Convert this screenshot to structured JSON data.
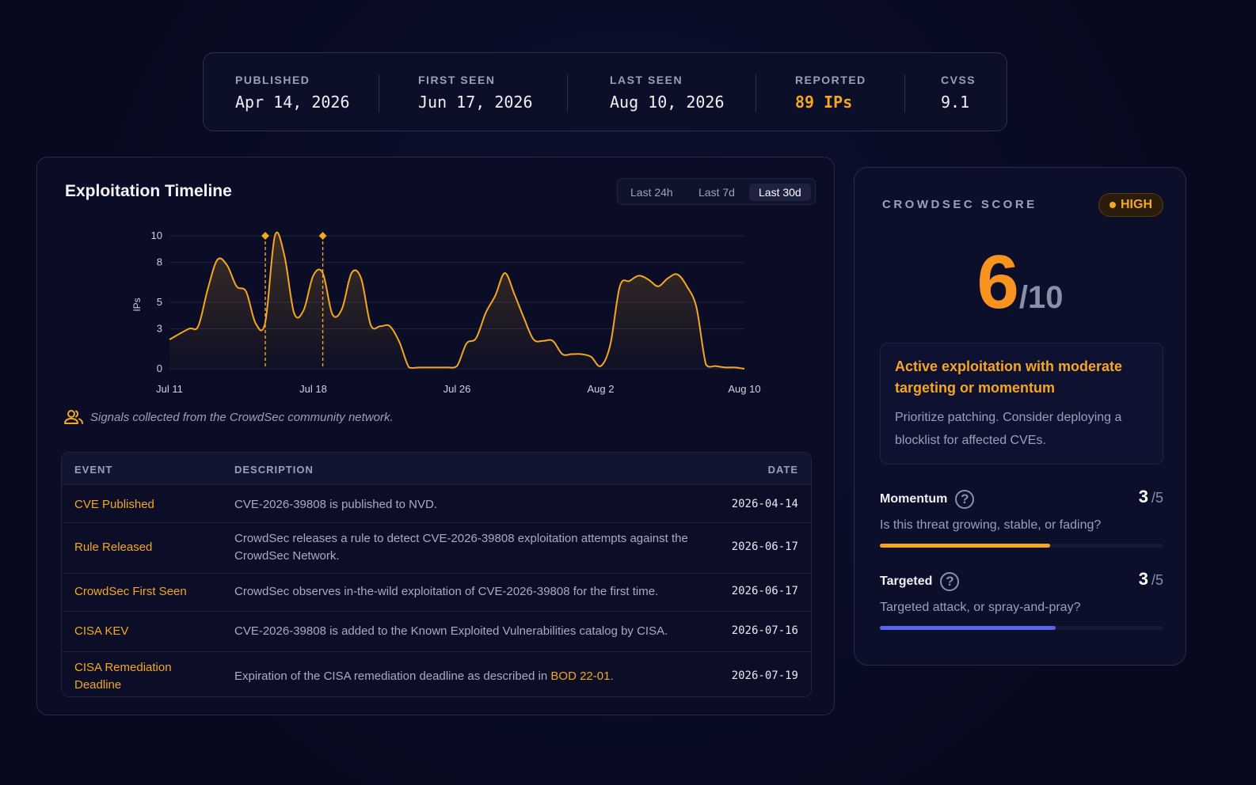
{
  "stats": {
    "published": {
      "label": "PUBLISHED",
      "value": "Apr 14, 2026"
    },
    "first_seen": {
      "label": "FIRST SEEN",
      "value": "Jun 17, 2026"
    },
    "last_seen": {
      "label": "LAST SEEN",
      "value": "Aug 10, 2026"
    },
    "reported": {
      "label": "REPORTED",
      "value": "89 IPs"
    },
    "cvss": {
      "label": "CVSS",
      "value": "9.1"
    }
  },
  "timeline": {
    "title": "Exploitation Timeline",
    "ranges": [
      "Last 24h",
      "Last 7d",
      "Last 30d"
    ],
    "active_range": "Last 30d",
    "signal_note": "Signals collected from the CrowdSec community network."
  },
  "chart_data": {
    "type": "area",
    "ylabel": "IPs",
    "yticks": [
      "0",
      "3",
      "5",
      "8",
      "10"
    ],
    "ylim": [
      0,
      10
    ],
    "xticks": [
      "Jul 11",
      "Jul 18",
      "Jul 26",
      "Aug 2",
      "Aug 10"
    ],
    "grid": true,
    "color": "#f5a623",
    "series": [
      {
        "x": [
          0,
          1,
          1.5,
          2,
          2.5,
          3,
          3.5,
          4,
          4.5,
          5,
          5.5,
          6,
          6.5,
          7,
          7.5,
          8,
          8.5,
          9,
          9.5,
          10,
          10.5,
          11,
          11.5,
          12,
          12.5,
          13,
          13.5,
          14,
          14.5,
          15,
          15.5,
          16,
          16.5,
          17,
          17.5,
          18,
          18.5,
          19,
          19.5,
          20,
          20.5,
          21,
          21.5,
          22,
          22.5,
          23,
          23.5,
          24,
          24.5,
          25,
          25.5,
          26,
          26.5,
          27,
          27.5,
          28,
          28.5,
          29,
          29.5,
          30
        ],
        "y": [
          2.2,
          3.0,
          3.2,
          6.0,
          8.2,
          7.8,
          6.2,
          5.8,
          3.4,
          3.5,
          10.0,
          8.5,
          4.2,
          4.4,
          7.0,
          7.2,
          4.1,
          4.5,
          7.2,
          6.8,
          3.3,
          3.2,
          3.2,
          2.0,
          0.1,
          0.1,
          0.1,
          0.1,
          0.1,
          0.2,
          1.9,
          2.3,
          4.2,
          5.5,
          7.2,
          5.6,
          3.8,
          2.2,
          2.1,
          2.1,
          1.1,
          1.1,
          1.1,
          0.9,
          0.2,
          1.8,
          6.2,
          6.6,
          7.0,
          6.7,
          6.2,
          6.8,
          7.1,
          6.2,
          4.6,
          0.3,
          0.2,
          0.1,
          0.1,
          0.0
        ]
      }
    ],
    "markers": [
      {
        "x": 5,
        "y": 10
      },
      {
        "x": 8,
        "y": 10
      }
    ]
  },
  "table": {
    "headers": {
      "event": "EVENT",
      "description": "DESCRIPTION",
      "date": "DATE"
    },
    "rows": [
      {
        "event": "CVE Published",
        "description": "CVE-2026-39808 is published to NVD.",
        "date": "2026-04-14"
      },
      {
        "event": "Rule Released",
        "description": "CrowdSec releases a rule to detect CVE-2026-39808 exploitation attempts against the CrowdSec Network.",
        "date": "2026-06-17"
      },
      {
        "event": "CrowdSec First Seen",
        "description": "CrowdSec observes in-the-wild exploitation of CVE-2026-39808 for the first time.",
        "date": "2026-06-17"
      },
      {
        "event": "CISA KEV",
        "description": "CVE-2026-39808 is added to the Known Exploited Vulnerabilities catalog by CISA.",
        "date": "2026-07-16"
      },
      {
        "event": "CISA Remediation Deadline",
        "description_prefix": "Expiration of the CISA remediation deadline as described in ",
        "link": "BOD 22-01",
        "description_suffix": ".",
        "date": "2026-07-19"
      }
    ]
  },
  "score": {
    "label": "CROWDSEC SCORE",
    "badge": "HIGH",
    "value": "6",
    "denominator": "/10",
    "advice_title": "Active exploitation with moderate targeting or momentum",
    "advice_body": "Prioritize patching. Consider deploying a blocklist for affected CVEs.",
    "metrics": [
      {
        "name": "Momentum",
        "value": "3",
        "max": "/5",
        "question": "Is this threat growing, stable, or fading?",
        "fill": 0.6,
        "color": "#f5a623"
      },
      {
        "name": "Targeted",
        "value": "3",
        "max": "/5",
        "question": "Targeted attack, or spray-and-pray?",
        "fill": 0.62,
        "color": "#5b63f0"
      }
    ]
  }
}
